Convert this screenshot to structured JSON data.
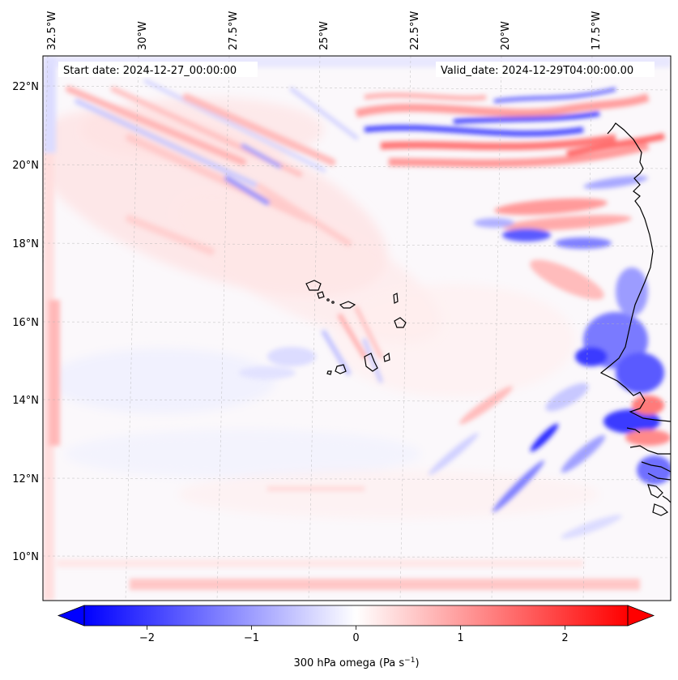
{
  "map": {
    "start_date_text": "Start date: 2024-12-27_00:00:00",
    "valid_date_text": "Valid_date: 2024-12-29T04:00:00.00",
    "lon_labels": [
      "32.5°W",
      "30°W",
      "27.5°W",
      "25°W",
      "22.5°W",
      "20°W",
      "17.5°W"
    ],
    "lat_labels": [
      "22°N",
      "20°N",
      "18°N",
      "16°N",
      "14°N",
      "12°N",
      "10°N"
    ],
    "colorbar": {
      "label_main": "300 hPa omega (Pa s",
      "label_sup": "−1",
      "label_close": ")",
      "ticks": [
        "−2",
        "−1",
        "0",
        "1",
        "2"
      ],
      "tick_values": [
        -2,
        -1,
        0,
        1,
        2
      ],
      "vmin": -2.6,
      "vmax": 2.6,
      "colors": {
        "negative": "#0000ff",
        "zero": "#ffffff",
        "positive": "#ff0000"
      }
    }
  }
}
